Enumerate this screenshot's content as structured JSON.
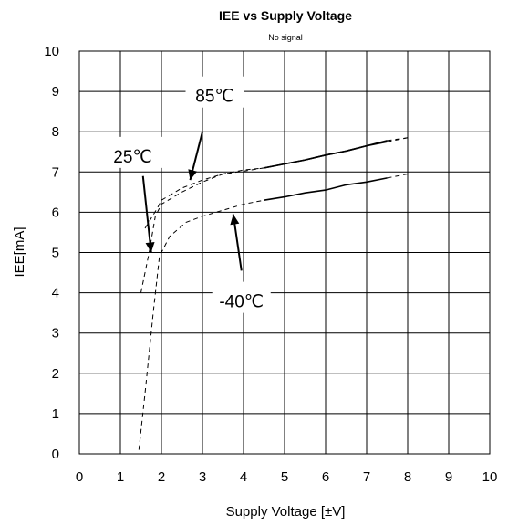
{
  "chart_data": {
    "type": "line",
    "title": "IEE vs Supply Voltage",
    "subtitle": "No signal",
    "xlabel": "Supply Voltage [±V]",
    "ylabel": "IEE[mA]",
    "xlim": [
      0,
      10
    ],
    "ylim": [
      0,
      10
    ],
    "xticks": [
      0,
      1,
      2,
      3,
      4,
      5,
      6,
      7,
      8,
      9,
      10
    ],
    "yticks": [
      0,
      1,
      2,
      3,
      4,
      5,
      6,
      7,
      8,
      9,
      10
    ],
    "grid": true,
    "series": [
      {
        "name": "85℃",
        "dashed": [
          [
            1.6,
            5.6
          ],
          [
            1.9,
            6.1
          ],
          [
            2.0,
            6.3
          ],
          [
            2.5,
            6.6
          ],
          [
            3.0,
            6.8
          ],
          [
            3.5,
            6.95
          ],
          [
            4.0,
            7.05
          ],
          [
            4.5,
            7.1
          ]
        ],
        "solid": [
          [
            4.5,
            7.1
          ],
          [
            5.0,
            7.2
          ],
          [
            5.5,
            7.3
          ],
          [
            6.0,
            7.42
          ],
          [
            6.5,
            7.52
          ],
          [
            7.0,
            7.65
          ],
          [
            7.5,
            7.78
          ]
        ],
        "dashed_end": [
          [
            7.5,
            7.78
          ],
          [
            8.0,
            7.85
          ]
        ]
      },
      {
        "name": "25℃",
        "dashed": [
          [
            1.5,
            4.0
          ],
          [
            1.7,
            5.0
          ],
          [
            1.85,
            5.9
          ],
          [
            2.0,
            6.2
          ],
          [
            2.5,
            6.5
          ],
          [
            3.0,
            6.75
          ],
          [
            3.5,
            6.95
          ],
          [
            4.0,
            7.02
          ],
          [
            4.5,
            7.1
          ]
        ],
        "solid": [
          [
            4.5,
            7.1
          ],
          [
            5.0,
            7.2
          ],
          [
            5.5,
            7.3
          ],
          [
            6.0,
            7.42
          ],
          [
            6.5,
            7.52
          ],
          [
            7.0,
            7.65
          ],
          [
            7.5,
            7.75
          ]
        ],
        "dashed_end": [
          [
            7.5,
            7.75
          ],
          [
            8.0,
            7.85
          ]
        ]
      },
      {
        "name": "-40℃",
        "dashed": [
          [
            1.45,
            0.1
          ],
          [
            1.6,
            1.5
          ],
          [
            1.8,
            3.5
          ],
          [
            1.95,
            4.9
          ],
          [
            2.2,
            5.4
          ],
          [
            2.6,
            5.75
          ],
          [
            3.0,
            5.9
          ],
          [
            3.5,
            6.05
          ],
          [
            4.0,
            6.2
          ],
          [
            4.5,
            6.3
          ]
        ],
        "solid": [
          [
            4.5,
            6.3
          ],
          [
            5.0,
            6.38
          ],
          [
            5.5,
            6.48
          ],
          [
            6.0,
            6.55
          ],
          [
            6.5,
            6.68
          ],
          [
            7.0,
            6.75
          ],
          [
            7.5,
            6.85
          ]
        ],
        "dashed_end": [
          [
            7.5,
            6.85
          ],
          [
            8.0,
            6.95
          ]
        ]
      }
    ],
    "annotations": [
      {
        "text": "85℃",
        "label_at": [
          3.3,
          8.85
        ],
        "arrow_from": [
          3.0,
          8.0
        ],
        "arrow_to": [
          2.7,
          6.8
        ]
      },
      {
        "text": "25℃",
        "label_at": [
          1.3,
          7.35
        ],
        "arrow_from": [
          1.55,
          6.9
        ],
        "arrow_to": [
          1.75,
          5.0
        ]
      },
      {
        "text": "-40℃",
        "label_at": [
          3.95,
          3.75
        ],
        "arrow_from": [
          3.95,
          4.55
        ],
        "arrow_to": [
          3.75,
          5.95
        ]
      }
    ],
    "colors": {
      "line": "#000000",
      "grid": "#000000",
      "background": "#ffffff"
    }
  }
}
